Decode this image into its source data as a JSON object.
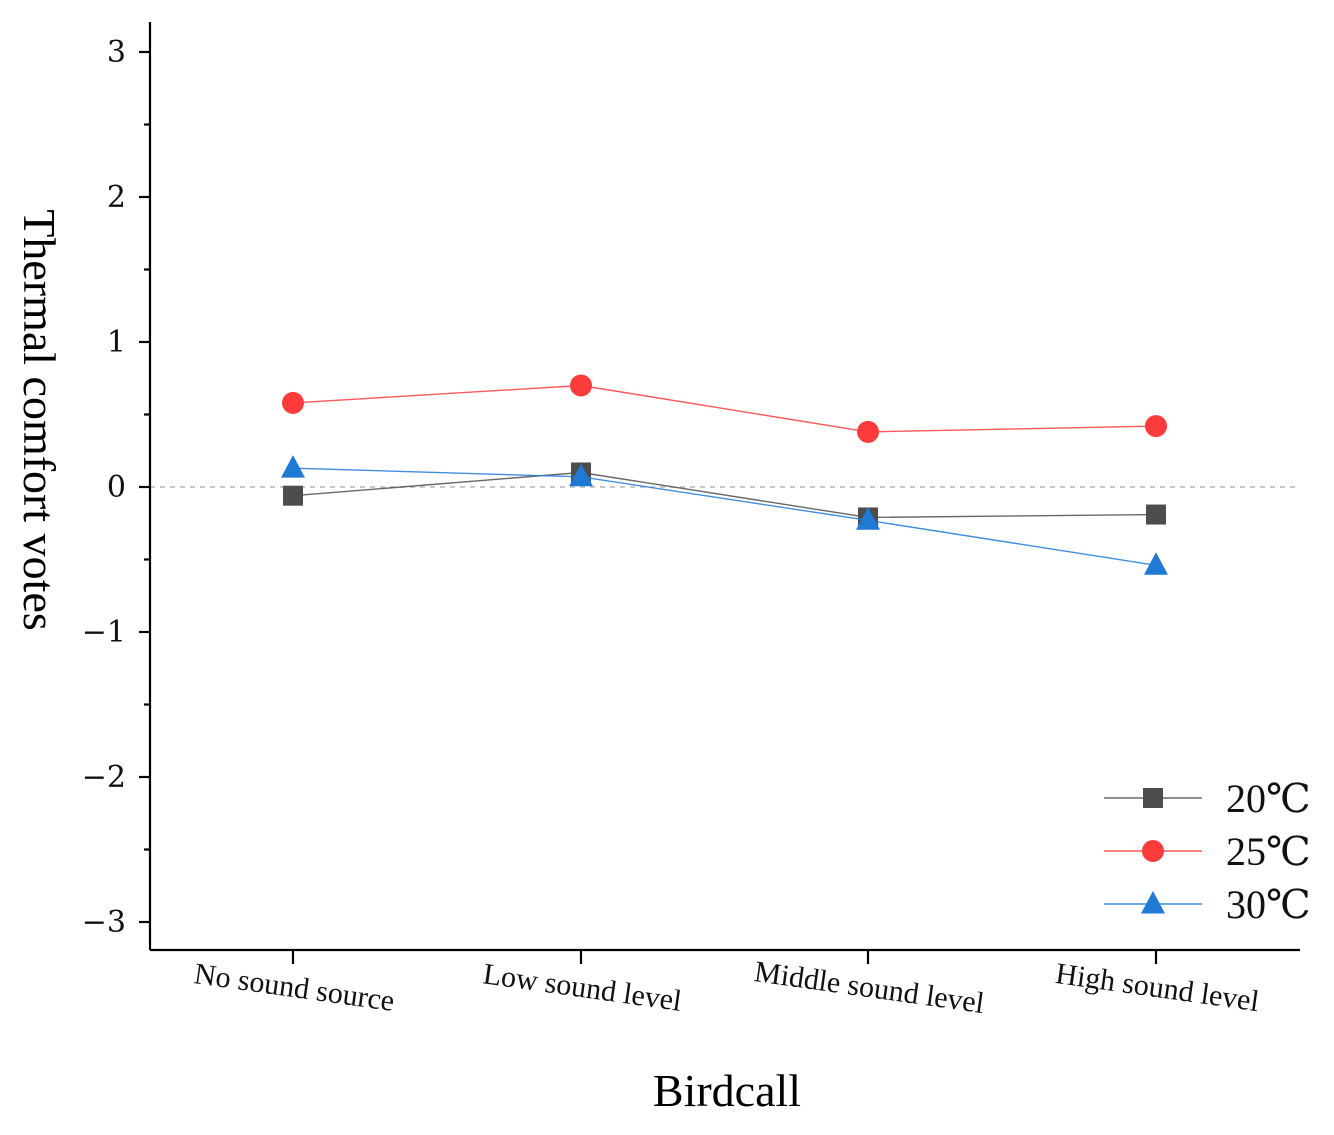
{
  "chart_data": {
    "type": "line",
    "title": "",
    "xlabel": "Birdcall",
    "ylabel": "Thermal comfort votes",
    "categories": [
      "No sound source",
      "Low sound level",
      "Middle sound level",
      "High sound level"
    ],
    "ylim": [
      -3.2,
      3.3
    ],
    "yticks": [
      3,
      2,
      1,
      0,
      -1,
      -2,
      -3
    ],
    "ytick_labels": [
      "3",
      "2",
      "1",
      "0",
      "−1",
      "−2",
      "−3"
    ],
    "reference_line": 0,
    "legend_position": "bottom-right",
    "series": [
      {
        "name": "20℃",
        "marker": "square",
        "color": "#4d4d4d",
        "values": [
          -0.06,
          0.1,
          -0.21,
          -0.19
        ]
      },
      {
        "name": "25℃",
        "marker": "circle",
        "color": "#ff3b3b",
        "values": [
          0.58,
          0.7,
          0.38,
          0.42
        ]
      },
      {
        "name": "30℃",
        "marker": "triangle",
        "color": "#1f7ad6",
        "values": [
          0.13,
          0.07,
          -0.23,
          -0.54
        ]
      }
    ]
  }
}
